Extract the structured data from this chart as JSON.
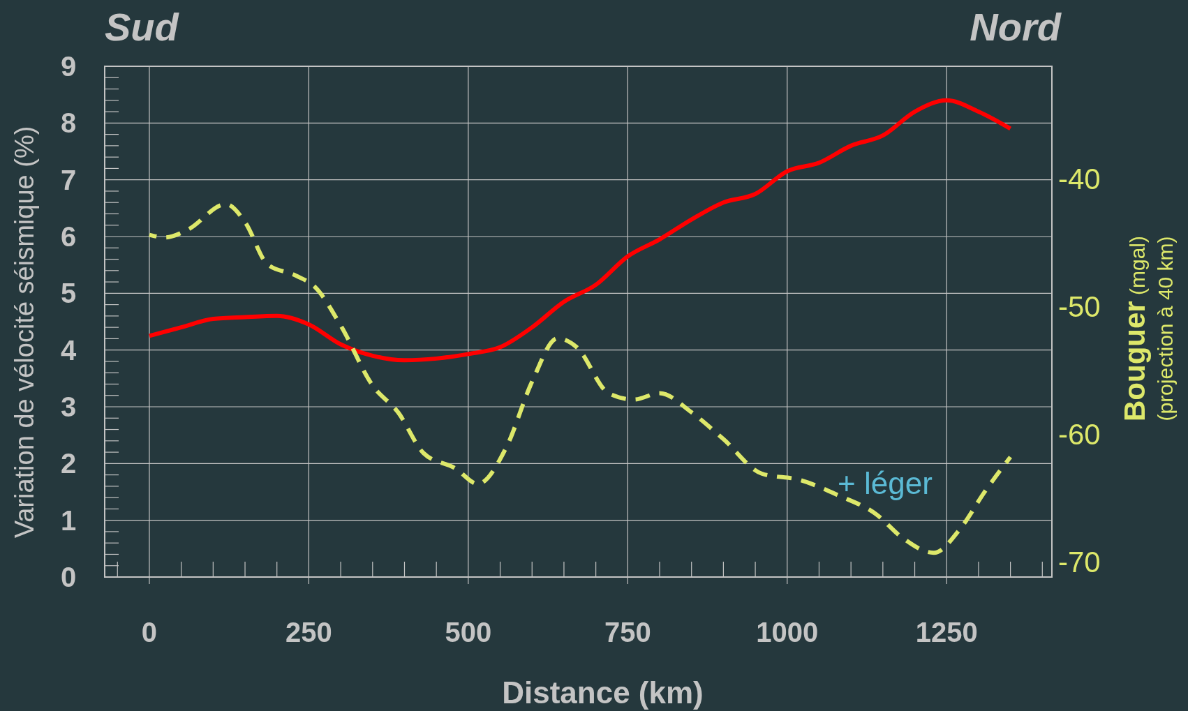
{
  "chart_data": {
    "type": "line",
    "xlabel": "Distance (km)",
    "ylabel": "Variation de vélocité séismique (%)",
    "y2label": "Bouguer (mgal)\n(projection à 40 km)",
    "annotations": [
      "Sud",
      "Nord",
      "+ léger"
    ],
    "series": [
      {
        "color": "#ff0000",
        "line_style": "solid",
        "x": [
          0,
          50,
          100,
          150,
          200,
          250,
          300,
          350,
          400,
          450,
          500,
          550,
          600,
          650,
          700,
          750,
          800,
          850,
          900,
          950,
          1000,
          1050,
          1100,
          1150,
          1200,
          1250,
          1300,
          1350
        ],
        "values": [
          4.25,
          4.4,
          4.55,
          4.58,
          4.6,
          4.45,
          4.1,
          3.9,
          3.82,
          3.85,
          3.93,
          4.05,
          4.4,
          4.85,
          5.15,
          5.65,
          5.95,
          6.3,
          6.6,
          6.75,
          7.15,
          7.3,
          7.6,
          7.78,
          8.2,
          8.4,
          8.2,
          7.9
        ]
      },
      {
        "color": "#dde86a",
        "line_style": "dashed",
        "axis": "y2",
        "x": [
          0,
          25,
          60,
          120,
          150,
          185,
          230,
          260,
          300,
          350,
          390,
          430,
          480,
          515,
          560,
          600,
          640,
          670,
          720,
          760,
          800,
          850,
          900,
          960,
          1020,
          1080,
          1140,
          1180,
          1230,
          1270,
          1310,
          1350
        ],
        "values": [
          -44.4,
          -44.6,
          -44,
          -42,
          -43.4,
          -46.7,
          -47.6,
          -48.5,
          -51.5,
          -56.2,
          -58.3,
          -61.5,
          -62.7,
          -63.9,
          -61,
          -55.9,
          -52.5,
          -53.2,
          -56.8,
          -57.3,
          -56.8,
          -58.3,
          -60.4,
          -63.1,
          -63.6,
          -64.8,
          -66.3,
          -68.1,
          -69.3,
          -67.5,
          -64.5,
          -61.8
        ]
      }
    ],
    "xlim": [
      -70,
      1415
    ],
    "xticks": [
      0,
      250,
      500,
      750,
      1000,
      1250
    ],
    "ylim": [
      0,
      9
    ],
    "yticks": [
      0,
      1,
      2,
      3,
      4,
      5,
      6,
      7,
      8,
      9
    ],
    "y2lim": [
      -71.2,
      -31.2
    ],
    "y2ticks": [
      -40,
      -50,
      -60,
      -70
    ],
    "grid": true
  }
}
